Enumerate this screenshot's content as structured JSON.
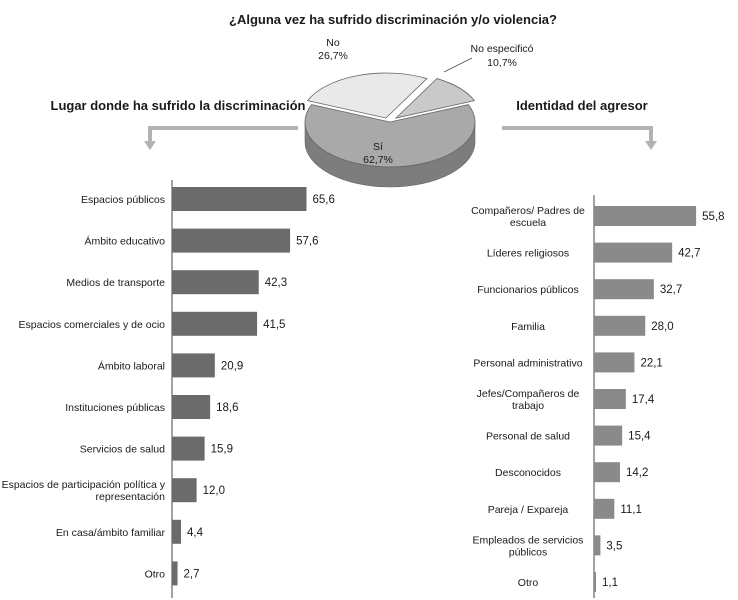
{
  "pie_title": "¿Alguna vez ha sufrido discriminación y/o violencia?",
  "left_title": "Lugar donde ha sufrido la discriminación",
  "right_title": "Identidad del agresor",
  "colors": {
    "bar_left": "#6b6b6b",
    "bar_right": "#8a8a8a",
    "pie_si": "#a9a9a9",
    "pie_no": "#e9e9e9",
    "pie_ne": "#c9c9c9",
    "arrow": "#b3b3b3",
    "axis": "#444444"
  },
  "chart_data": [
    {
      "type": "pie",
      "title": "¿Alguna vez ha sufrido discriminación y/o violencia?",
      "slices": [
        {
          "label": "Sí",
          "value": 62.7,
          "text": "62,7%"
        },
        {
          "label": "No",
          "value": 26.7,
          "text": "26,7%"
        },
        {
          "label": "No especificó",
          "value": 10.7,
          "text": "10,7%"
        }
      ]
    },
    {
      "type": "bar",
      "orientation": "horizontal",
      "title": "Lugar donde ha sufrido la discriminación",
      "categories": [
        "Espacios públicos",
        "Ámbito educativo",
        "Medios de transporte",
        "Espacios comerciales y de ocio",
        "Ámbito laboral",
        "Instituciones públicas",
        "Servicios de salud",
        "Espacios de participación política y representación",
        "En casa/ámbito familiar",
        "Otro"
      ],
      "category_lines": [
        [
          "Espacios públicos"
        ],
        [
          "Ámbito educativo"
        ],
        [
          "Medios de transporte"
        ],
        [
          "Espacios comerciales y de ocio"
        ],
        [
          "Ámbito laboral"
        ],
        [
          "Instituciones públicas"
        ],
        [
          "Servicios de salud"
        ],
        [
          "Espacios de participación política y",
          "representación"
        ],
        [
          "En casa/ámbito familiar"
        ],
        [
          "Otro"
        ]
      ],
      "values": [
        65.6,
        57.6,
        42.3,
        41.5,
        20.9,
        18.6,
        15.9,
        12.0,
        4.4,
        2.7
      ],
      "labels": [
        "65,6",
        "57,6",
        "42,3",
        "41,5",
        "20,9",
        "18,6",
        "15,9",
        "12,0",
        "4,4",
        "2,7"
      ]
    },
    {
      "type": "bar",
      "orientation": "horizontal",
      "title": "Identidad del agresor",
      "categories": [
        "Compañeros/ Padres de escuela",
        "Líderes religiosos",
        "Funcionarios públicos",
        "Familia",
        "Personal administrativo",
        "Jefes/Compañeros de trabajo",
        "Personal de salud",
        "Desconocidos",
        "Pareja / Expareja",
        "Empleados de servicios públicos",
        "Otro"
      ],
      "category_lines": [
        [
          "Compañeros/ Padres de",
          "escuela"
        ],
        [
          "Líderes religiosos"
        ],
        [
          "Funcionarios públicos"
        ],
        [
          "Familia"
        ],
        [
          "Personal administrativo"
        ],
        [
          "Jefes/Compañeros de",
          "trabajo"
        ],
        [
          "Personal de salud"
        ],
        [
          "Desconocidos"
        ],
        [
          "Pareja / Expareja"
        ],
        [
          "Empleados de servicios",
          "públicos"
        ],
        [
          "Otro"
        ]
      ],
      "values": [
        55.8,
        42.7,
        32.7,
        28.0,
        22.1,
        17.4,
        15.4,
        14.2,
        11.1,
        3.5,
        1.1
      ],
      "labels": [
        "55,8",
        "42,7",
        "32,7",
        "28,0",
        "22,1",
        "17,4",
        "15,4",
        "14,2",
        "11,1",
        "3,5",
        "1,1"
      ]
    }
  ]
}
